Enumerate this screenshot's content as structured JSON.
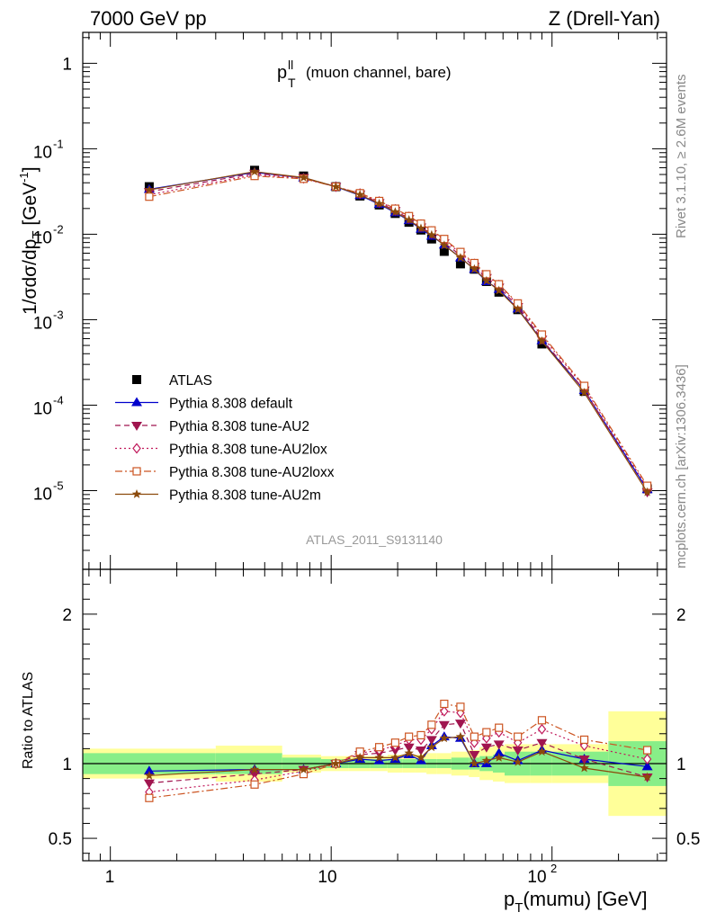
{
  "header": {
    "left": "7000 GeV pp",
    "right": "Z (Drell-Yan)"
  },
  "side_labels": {
    "rivet": "Rivet 3.1.10, ≥ 2.6M events",
    "mcplots": "mcplots.cern.ch [arXiv:1306.3436]"
  },
  "watermark": "ATLAS_2011_S9131140",
  "chart_data": [
    {
      "type": "line",
      "panel": "main",
      "title": "p_T^ll (muon channel, bare)",
      "xlabel": "p_T(mumu) [GeV]",
      "ylabel": "1/σdσ/dp_T [GeV^-1]",
      "x_scale": "log",
      "y_scale": "log",
      "xlim": [
        0.75,
        330
      ],
      "ylim": [
        1.2e-06,
        2.3
      ],
      "x_ticks": [
        "1",
        "10",
        "10^2"
      ],
      "y_ticks": [
        "10^-5",
        "10^-4",
        "10^-3",
        "10^-2",
        "10^-1",
        "1"
      ],
      "legend_position": "bottom-left",
      "x": [
        1.5,
        4.5,
        7.5,
        10.5,
        13.5,
        16.5,
        19.5,
        22.5,
        25.5,
        28.5,
        32.5,
        38.5,
        44.5,
        50.5,
        57.5,
        70,
        90,
        140,
        270
      ],
      "series": [
        {
          "name": "ATLAS",
          "color": "#000000",
          "marker": "square",
          "dash": "none",
          "values": [
            0.036,
            0.056,
            0.048,
            0.036,
            0.028,
            0.022,
            0.0175,
            0.0138,
            0.0112,
            0.0088,
            0.0063,
            0.0045,
            0.0039,
            0.0028,
            0.0021,
            0.00131,
            0.00052,
            0.000145,
            1.05e-05
          ]
        },
        {
          "name": "Pythia 8.308 default",
          "color": "#0000cc",
          "marker": "triangle-up",
          "dash": "solid",
          "values": [
            0.0335,
            0.053,
            0.0456,
            0.036,
            0.0285,
            0.0224,
            0.0179,
            0.0145,
            0.0115,
            0.0095,
            0.0075,
            0.0053,
            0.0039,
            0.0028,
            0.00227,
            0.00134,
            0.00057,
            0.000149,
            1.03e-05
          ]
        },
        {
          "name": "Pythia 8.308 tune-AU2",
          "color": "#a0154f",
          "marker": "triangle-down",
          "dash": "dash",
          "values": [
            0.0315,
            0.0515,
            0.046,
            0.036,
            0.0295,
            0.0234,
            0.0189,
            0.0152,
            0.0121,
            0.0101,
            0.0079,
            0.0057,
            0.0042,
            0.0031,
            0.0024,
            0.00142,
            0.00059,
            0.00015,
            9.6e-06
          ]
        },
        {
          "name": "Pythia 8.308 tune-AU2lox",
          "color": "#c0185a",
          "marker": "diamond",
          "dash": "dashdot",
          "values": [
            0.029,
            0.0495,
            0.045,
            0.036,
            0.03,
            0.0242,
            0.0196,
            0.016,
            0.013,
            0.0108,
            0.0085,
            0.006,
            0.0045,
            0.0033,
            0.00255,
            0.0015,
            0.00064,
            0.000162,
            1.08e-05
          ]
        },
        {
          "name": "Pythia 8.308 tune-AU2loxx",
          "color": "#cc5522",
          "marker": "square-open",
          "dash": "longdashdot",
          "values": [
            0.0275,
            0.048,
            0.0445,
            0.036,
            0.0302,
            0.0245,
            0.0199,
            0.0163,
            0.0133,
            0.0111,
            0.0088,
            0.0062,
            0.0046,
            0.0034,
            0.0026,
            0.00155,
            0.00067,
            0.000168,
            1.14e-05
          ]
        },
        {
          "name": "Pythia 8.308 tune-AU2m",
          "color": "#8b4a0c",
          "marker": "star",
          "dash": "solid",
          "values": [
            0.033,
            0.054,
            0.046,
            0.036,
            0.029,
            0.0228,
            0.0182,
            0.0147,
            0.0117,
            0.0098,
            0.0074,
            0.0053,
            0.0039,
            0.00285,
            0.00219,
            0.00132,
            0.00056,
            0.00014,
            9.6e-06
          ]
        }
      ]
    },
    {
      "type": "line",
      "panel": "ratio",
      "xlabel": "p_T(mumu) [GeV]",
      "ylabel": "Ratio to ATLAS",
      "x_scale": "log",
      "xlim": [
        0.75,
        330
      ],
      "ylim": [
        0.35,
        2.3
      ],
      "y_ticks": [
        "0.5",
        "1",
        "2"
      ],
      "x": [
        1.5,
        4.5,
        7.5,
        10.5,
        13.5,
        16.5,
        19.5,
        22.5,
        25.5,
        28.5,
        32.5,
        38.5,
        44.5,
        50.5,
        57.5,
        70,
        90,
        140,
        270
      ],
      "bands": {
        "edges": [
          0.75,
          3,
          6,
          9,
          12,
          15,
          18,
          21,
          24,
          27,
          30,
          35,
          42,
          47,
          54,
          61,
          80,
          100,
          180,
          330
        ],
        "inner": [
          0.07,
          0.07,
          0.04,
          0.03,
          0.03,
          0.03,
          0.03,
          0.03,
          0.03,
          0.03,
          0.03,
          0.04,
          0.04,
          0.05,
          0.06,
          0.08,
          0.08,
          0.08,
          0.15
        ],
        "outer": [
          0.1,
          0.12,
          0.06,
          0.05,
          0.05,
          0.05,
          0.06,
          0.06,
          0.06,
          0.07,
          0.07,
          0.08,
          0.09,
          0.11,
          0.12,
          0.13,
          0.13,
          0.13,
          0.35
        ],
        "inner_color": "#88ee88",
        "outer_color": "#ffff99"
      },
      "series": [
        {
          "name": "Pythia 8.308 default",
          "color": "#0000cc",
          "marker": "triangle-up",
          "dash": "solid",
          "values": [
            0.95,
            0.96,
            0.96,
            1.0,
            1.03,
            1.02,
            1.03,
            1.06,
            1.02,
            1.12,
            1.18,
            1.17,
            1.0,
            1.0,
            1.07,
            1.02,
            1.09,
            1.03,
            0.98
          ]
        },
        {
          "name": "Pythia 8.308 tune-AU2",
          "color": "#a0154f",
          "marker": "triangle-down",
          "dash": "dash",
          "values": [
            0.87,
            0.93,
            0.96,
            1.0,
            1.06,
            1.07,
            1.09,
            1.11,
            1.09,
            1.16,
            1.26,
            1.27,
            1.06,
            1.11,
            1.13,
            1.09,
            1.14,
            1.03,
            0.91
          ]
        },
        {
          "name": "Pythia 8.308 tune-AU2lox",
          "color": "#c0185a",
          "marker": "diamond",
          "dash": "dashdot",
          "values": [
            0.81,
            0.89,
            0.95,
            1.0,
            1.07,
            1.09,
            1.12,
            1.16,
            1.16,
            1.23,
            1.35,
            1.34,
            1.14,
            1.17,
            1.21,
            1.14,
            1.23,
            1.12,
            1.03
          ]
        },
        {
          "name": "Pythia 8.308 tune-AU2loxx",
          "color": "#cc5522",
          "marker": "square-open",
          "dash": "longdashdot",
          "values": [
            0.77,
            0.86,
            0.93,
            1.0,
            1.08,
            1.11,
            1.14,
            1.18,
            1.19,
            1.26,
            1.4,
            1.38,
            1.18,
            1.21,
            1.24,
            1.18,
            1.29,
            1.16,
            1.09
          ]
        },
        {
          "name": "Pythia 8.308 tune-AU2m",
          "color": "#8b4a0c",
          "marker": "star",
          "dash": "solid",
          "values": [
            0.92,
            0.96,
            0.96,
            1.0,
            1.04,
            1.04,
            1.04,
            1.07,
            1.04,
            1.11,
            1.17,
            1.18,
            1.0,
            1.02,
            1.04,
            1.01,
            1.08,
            0.97,
            0.91
          ]
        }
      ]
    }
  ]
}
